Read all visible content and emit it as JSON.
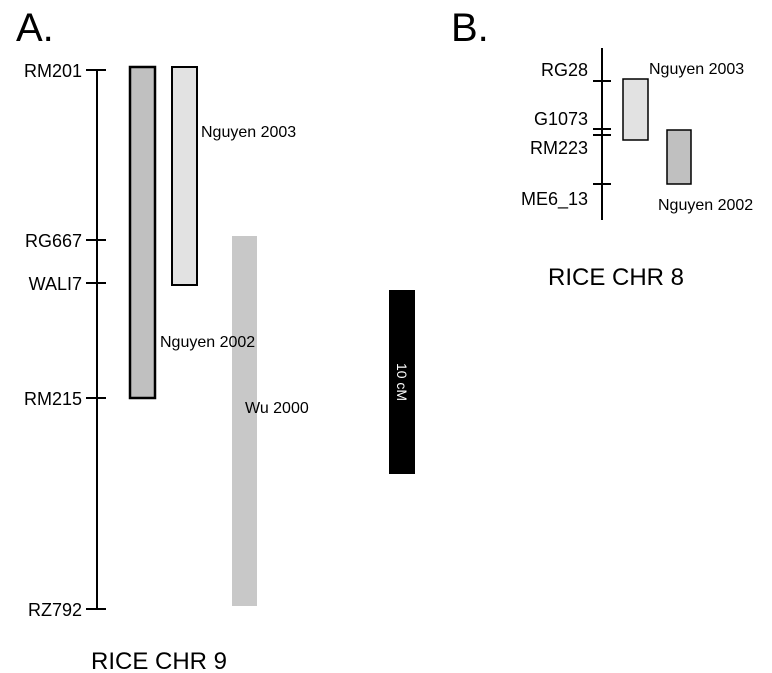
{
  "panel_a": {
    "letter": "A.",
    "title": "RICE CHR 9",
    "markers": [
      "RM201",
      "RG667",
      "WALI7",
      "RM215",
      "RZ792"
    ],
    "qtls": [
      "Nguyen 2002",
      "Nguyen 2003",
      "Wu 2000"
    ],
    "scale_bar": "10 cM"
  },
  "panel_b": {
    "letter": "B.",
    "title": "RICE CHR 8",
    "markers": [
      "RG28",
      "G1073",
      "RM223",
      "ME6_13"
    ],
    "qtls": [
      "Nguyen 2003",
      "Nguyen 2002"
    ]
  },
  "colors": {
    "nguyen_2002_fill": "#c0c0c0",
    "nguyen_2003_fill": "#e2e2e2",
    "wu_2000_fill": "#c8c8c8",
    "scale_bar_fill": "#000000"
  }
}
